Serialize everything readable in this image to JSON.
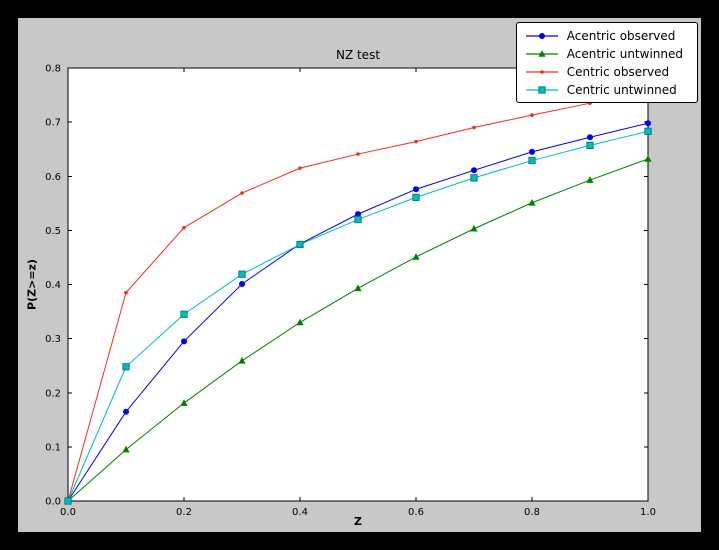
{
  "figure": {
    "background": "#000000",
    "canvas_color": "#c8c8c8",
    "plot_background": "#ffffff",
    "axis_color": "#000000"
  },
  "chart_data": {
    "type": "line",
    "title": "NZ test",
    "xlabel": "Z",
    "ylabel": "P(Z>=z)",
    "xlim": [
      0,
      1
    ],
    "ylim": [
      0,
      0.8
    ],
    "grid": false,
    "legend_position": "upper right",
    "x_tick_values": [
      0,
      0.2,
      0.4,
      0.6,
      0.8,
      1.0
    ],
    "x_tick_labels": [
      "0.0",
      "0.2",
      "0.4",
      "0.6",
      "0.8",
      "1.0"
    ],
    "y_tick_values": [
      0,
      0.1,
      0.2,
      0.3,
      0.4,
      0.5,
      0.6,
      0.7,
      0.8
    ],
    "y_tick_labels": [
      "0.0",
      "0.1",
      "0.2",
      "0.3",
      "0.4",
      "0.5",
      "0.6",
      "0.7",
      "0.8"
    ],
    "x": [
      0,
      0.1,
      0.2,
      0.3,
      0.4,
      0.5,
      0.6,
      0.7,
      0.8,
      0.9,
      1.0
    ],
    "series": [
      {
        "name": "Acentric observed",
        "color": "#0000ee",
        "marker": "circle",
        "values": [
          0,
          0.165,
          0.295,
          0.401,
          0.475,
          0.53,
          0.576,
          0.611,
          0.645,
          0.672,
          0.698
        ]
      },
      {
        "name": "Acentric untwinned",
        "color": "#007f00",
        "marker": "triangle",
        "values": [
          0,
          0.095,
          0.181,
          0.259,
          0.33,
          0.393,
          0.451,
          0.503,
          0.551,
          0.593,
          0.632
        ]
      },
      {
        "name": "Centric observed",
        "color": "#ee2e1e",
        "marker": "dot",
        "values": [
          0,
          0.385,
          0.505,
          0.569,
          0.615,
          0.641,
          0.664,
          0.69,
          0.713,
          0.735,
          0.757
        ]
      },
      {
        "name": "Centric untwinned",
        "color": "#00bcbc",
        "marker": "square",
        "marker_edge": "#007070",
        "values": [
          0,
          0.248,
          0.345,
          0.419,
          0.474,
          0.52,
          0.561,
          0.597,
          0.629,
          0.657,
          0.683
        ]
      }
    ]
  }
}
